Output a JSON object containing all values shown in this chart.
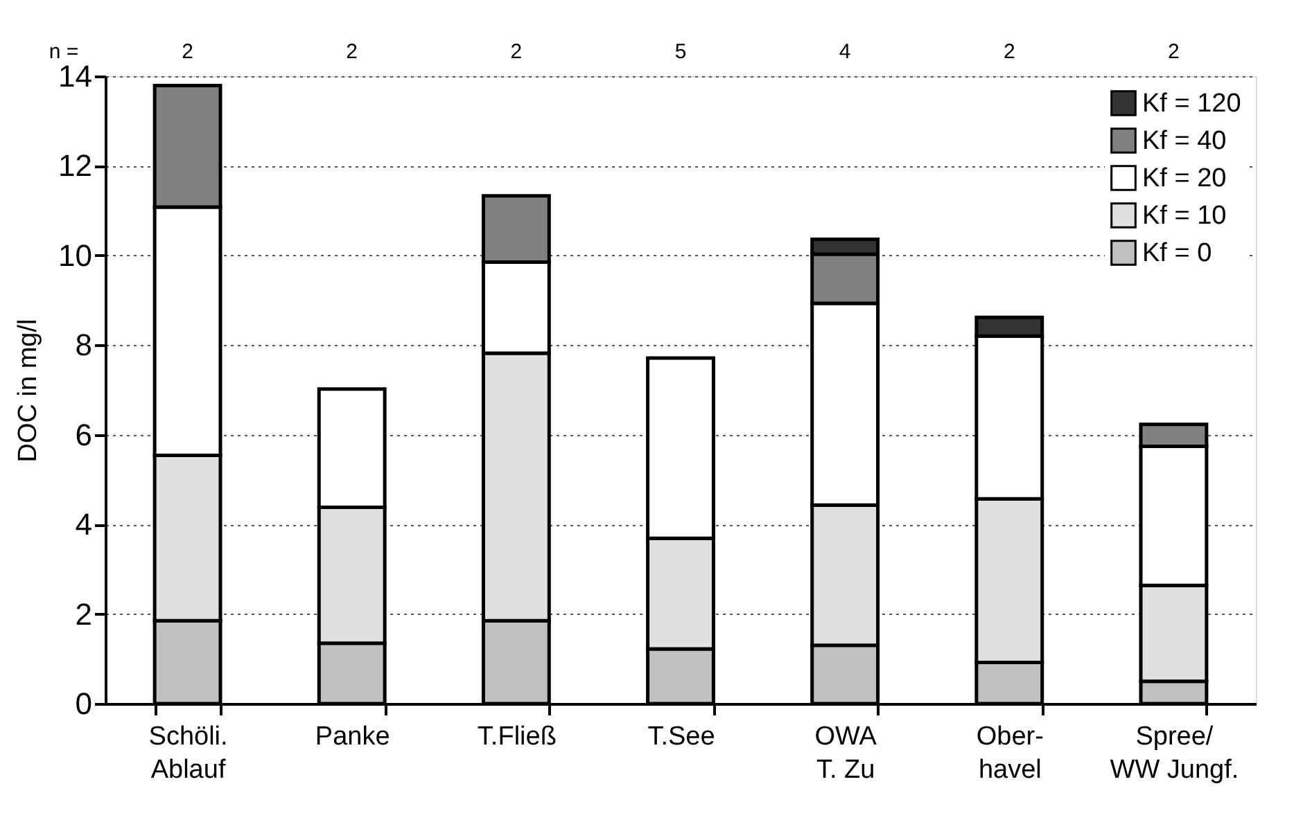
{
  "chart_data": {
    "type": "bar",
    "stacked": true,
    "ylabel": "DOC in mg/l",
    "categories": [
      "Schöli.\nAblauf",
      "Panke",
      "T.Fließ",
      "T.See",
      "OWA\nT. Zu",
      "Ober-\nhavel",
      "Spree/\nWW Jungf."
    ],
    "series": [
      {
        "name": "Kf = 0",
        "color": "#c0c0c0",
        "values": [
          1.85,
          1.35,
          1.85,
          1.22,
          1.3,
          0.92,
          0.5
        ]
      },
      {
        "name": "Kf = 10",
        "color": "#e0e0e0",
        "values": [
          3.69,
          3.03,
          5.97,
          2.47,
          3.13,
          3.65,
          2.14
        ]
      },
      {
        "name": "Kf = 20",
        "color": "#ffffff",
        "values": [
          5.54,
          2.64,
          2.03,
          4.02,
          4.5,
          3.63,
          3.1
        ]
      },
      {
        "name": "Kf = 40",
        "color": "#808080",
        "values": [
          2.71,
          null,
          1.48,
          null,
          1.1,
          null,
          0.49
        ]
      },
      {
        "name": "Kf = 120",
        "color": "#333333",
        "values": [
          null,
          null,
          null,
          null,
          0.33,
          0.42,
          null
        ]
      }
    ],
    "ylim": [
      0,
      14
    ],
    "yticks": [
      0,
      2,
      4,
      6,
      8,
      10,
      12,
      14
    ],
    "grid": "y",
    "legend": "top right",
    "annotations": [
      "n =",
      "2",
      "2",
      "2",
      "5",
      "4",
      "2",
      "2"
    ]
  }
}
